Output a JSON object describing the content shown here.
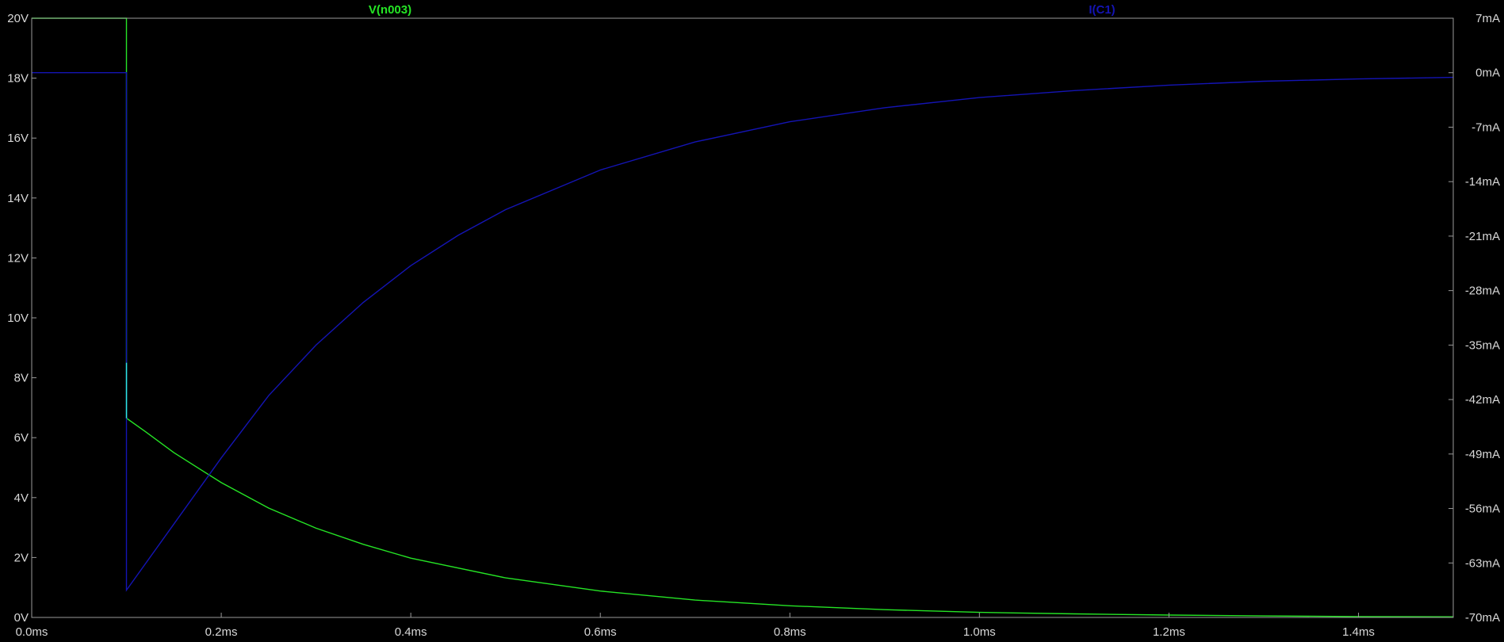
{
  "colors": {
    "background": "#000000",
    "frame": "#9a9a9a",
    "tick_text": "#d8d8d8",
    "voltage_trace": "#25e425",
    "current_trace": "#1414b4",
    "voltage_step": "#2ee6e6"
  },
  "chart_data": {
    "type": "line",
    "grid": false,
    "legend_placement": "top",
    "x": {
      "unit": "ms",
      "range": [
        0,
        1.5
      ],
      "ticks": [
        0.0,
        0.2,
        0.4,
        0.6,
        0.8,
        1.0,
        1.2,
        1.4
      ],
      "tick_labels": [
        "0.0ms",
        "0.2ms",
        "0.4ms",
        "0.6ms",
        "0.8ms",
        "1.0ms",
        "1.2ms",
        "1.4ms"
      ]
    },
    "y_left": {
      "unit": "V",
      "range": [
        0,
        20
      ],
      "ticks": [
        0,
        2,
        4,
        6,
        8,
        10,
        12,
        14,
        16,
        18,
        20
      ],
      "tick_labels": [
        "0V",
        "2V",
        "4V",
        "6V",
        "8V",
        "10V",
        "12V",
        "14V",
        "16V",
        "18V",
        "20V"
      ]
    },
    "y_right": {
      "unit": "mA",
      "range": [
        -70,
        7
      ],
      "ticks": [
        7,
        0,
        -7,
        -14,
        -21,
        -28,
        -35,
        -42,
        -49,
        -56,
        -63,
        -70
      ],
      "tick_labels": [
        "7mA",
        "0mA",
        "-7mA",
        "-14mA",
        "-21mA",
        "-28mA",
        "-35mA",
        "-42mA",
        "-49mA",
        "-56mA",
        "-63mA",
        "-70mA"
      ]
    },
    "series": [
      {
        "name": "V(n003)",
        "axis": "left",
        "color": "#25e425",
        "x": [
          0.0,
          0.1,
          0.1,
          0.1,
          0.12,
          0.15,
          0.2,
          0.25,
          0.3,
          0.35,
          0.4,
          0.5,
          0.6,
          0.7,
          0.8,
          0.9,
          1.0,
          1.1,
          1.2,
          1.3,
          1.4,
          1.5
        ],
        "y": [
          20.0,
          20.0,
          8.5,
          6.65,
          6.2,
          5.5,
          4.5,
          3.65,
          2.98,
          2.44,
          1.98,
          1.32,
          0.88,
          0.58,
          0.39,
          0.26,
          0.17,
          0.12,
          0.08,
          0.05,
          0.03,
          0.02
        ]
      },
      {
        "name": "I(C1)",
        "axis": "right",
        "color": "#1414b4",
        "x": [
          0.0,
          0.1,
          0.1,
          0.1,
          0.15,
          0.2,
          0.25,
          0.3,
          0.35,
          0.4,
          0.45,
          0.5,
          0.6,
          0.7,
          0.8,
          0.9,
          1.0,
          1.1,
          1.2,
          1.3,
          1.4,
          1.5
        ],
        "y": [
          0.0,
          0.0,
          -52.0,
          -66.5,
          -58.0,
          -49.5,
          -41.5,
          -35.0,
          -29.5,
          -24.8,
          -20.9,
          -17.6,
          -12.5,
          -8.9,
          -6.3,
          -4.5,
          -3.2,
          -2.3,
          -1.6,
          -1.1,
          -0.8,
          -0.6
        ]
      }
    ]
  }
}
